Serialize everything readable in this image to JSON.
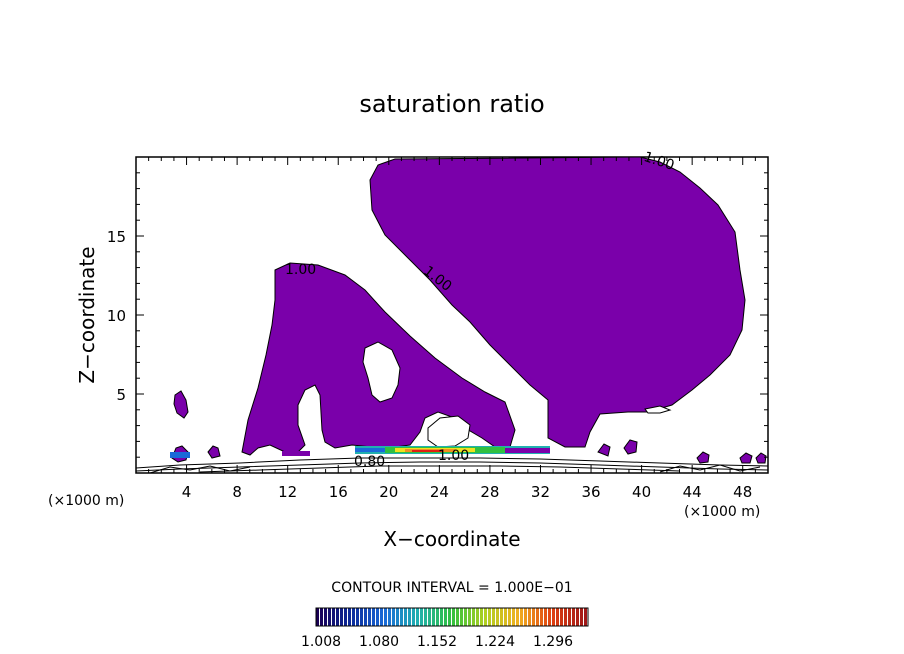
{
  "chart_data": {
    "type": "contour",
    "title": "saturation ratio",
    "xlabel": "X−coordinate",
    "ylabel": "Z−coordinate",
    "x_unit_left": "(×1000 m)",
    "x_unit_right": "(×1000 m)",
    "xlim": [
      0,
      50
    ],
    "ylim": [
      0,
      20
    ],
    "x_ticks": [
      4,
      8,
      12,
      16,
      20,
      24,
      28,
      32,
      36,
      40,
      44,
      48
    ],
    "y_ticks": [
      5,
      10,
      15
    ],
    "contour_labels": [
      "1.00",
      "1.00",
      "1.00",
      "1.00",
      "0.80"
    ],
    "contour_interval_text": "CONTOUR INTERVAL = 1.000E−01",
    "colorbar": {
      "ticks": [
        "1.008",
        "1.080",
        "1.152",
        "1.224",
        "1.296"
      ],
      "colors": [
        "#1a0055",
        "#0a2a9a",
        "#1a6ad8",
        "#20b0b0",
        "#30c040",
        "#b0d020",
        "#f0b020",
        "#e04010",
        "#a01818"
      ]
    },
    "fill_color": "#7a00aa"
  }
}
